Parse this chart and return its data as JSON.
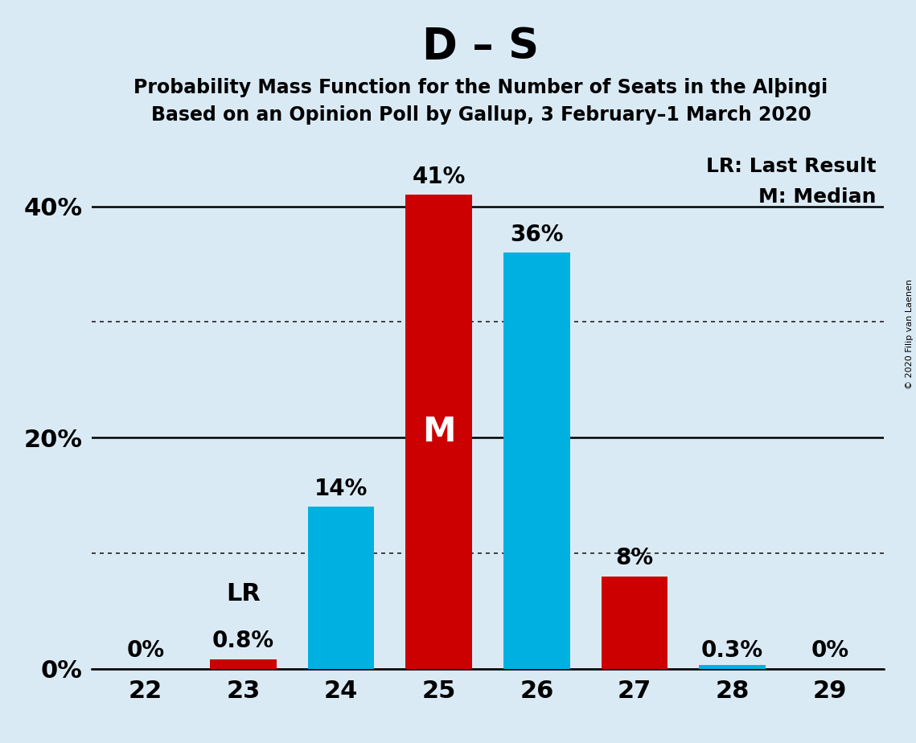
{
  "title": "D – S",
  "subtitle1_text": "Probability Mass Function for the Number of Seats in the Alþingi",
  "subtitle2_text": "Based on an Opinion Poll by Gallup, 3 February–1 March 2020",
  "seats": [
    22,
    23,
    24,
    25,
    26,
    27,
    28,
    29
  ],
  "values": [
    0.0,
    0.8,
    14.0,
    41.0,
    36.0,
    8.0,
    0.3,
    0.0
  ],
  "colors": [
    "#cc0000",
    "#cc0000",
    "#00b0e0",
    "#cc0000",
    "#00b0e0",
    "#cc0000",
    "#00b0e0",
    "#00b0e0"
  ],
  "bar_labels": [
    "0%",
    "0.8%",
    "14%",
    "41%",
    "36%",
    "8%",
    "0.3%",
    "0%"
  ],
  "median_seat": 25,
  "last_result_seat": 23,
  "median_label": "M",
  "lr_label": "LR",
  "legend_lr": "LR: Last Result",
  "legend_m": "M: Median",
  "bg_color": "#daeaf5",
  "ylim": [
    0,
    45
  ],
  "yticks": [
    0,
    10,
    20,
    30,
    40
  ],
  "copyright": "© 2020 Filip van Laenen",
  "title_fontsize": 38,
  "subtitle_fontsize": 17,
  "tick_fontsize": 22,
  "label_fontsize": 20,
  "legend_fontsize": 18
}
